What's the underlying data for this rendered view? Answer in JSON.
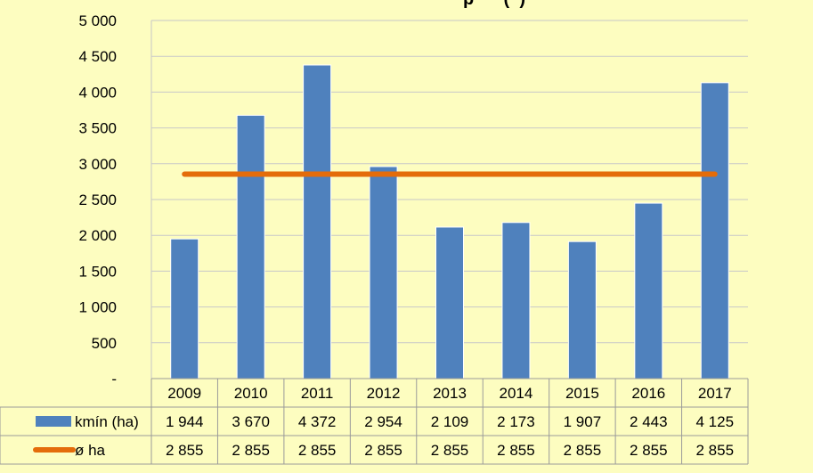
{
  "chart_data": {
    "type": "bar",
    "title_fragment": "p      (  )",
    "categories": [
      "2009",
      "2010",
      "2011",
      "2012",
      "2013",
      "2014",
      "2015",
      "2016",
      "2017"
    ],
    "series": [
      {
        "name": "kmín (ha)",
        "kind": "bar",
        "color": "#4f81bd",
        "values": [
          1944,
          3670,
          4372,
          2954,
          2109,
          2173,
          1907,
          2443,
          4125
        ],
        "labels": [
          "1 944",
          "3 670",
          "4 372",
          "2 954",
          "2 109",
          "2 173",
          "1 907",
          "2 443",
          "4 125"
        ]
      },
      {
        "name": "ø ha",
        "kind": "line",
        "color": "#e46c0a",
        "values": [
          2855,
          2855,
          2855,
          2855,
          2855,
          2855,
          2855,
          2855,
          2855
        ],
        "labels": [
          "2 855",
          "2 855",
          "2 855",
          "2 855",
          "2 855",
          "2 855",
          "2 855",
          "2 855",
          "2 855"
        ]
      }
    ],
    "ylim": [
      0,
      5000
    ],
    "yticks": [
      0,
      500,
      1000,
      1500,
      2000,
      2500,
      3000,
      3500,
      4000,
      4500,
      5000
    ],
    "ytick_labels": [
      "-",
      "500",
      "1 000",
      "1 500",
      "2 000",
      "2 500",
      "3 000",
      "3 500",
      "4 000",
      "4 500",
      "5 000"
    ],
    "grid": true,
    "legend": "data-table"
  }
}
